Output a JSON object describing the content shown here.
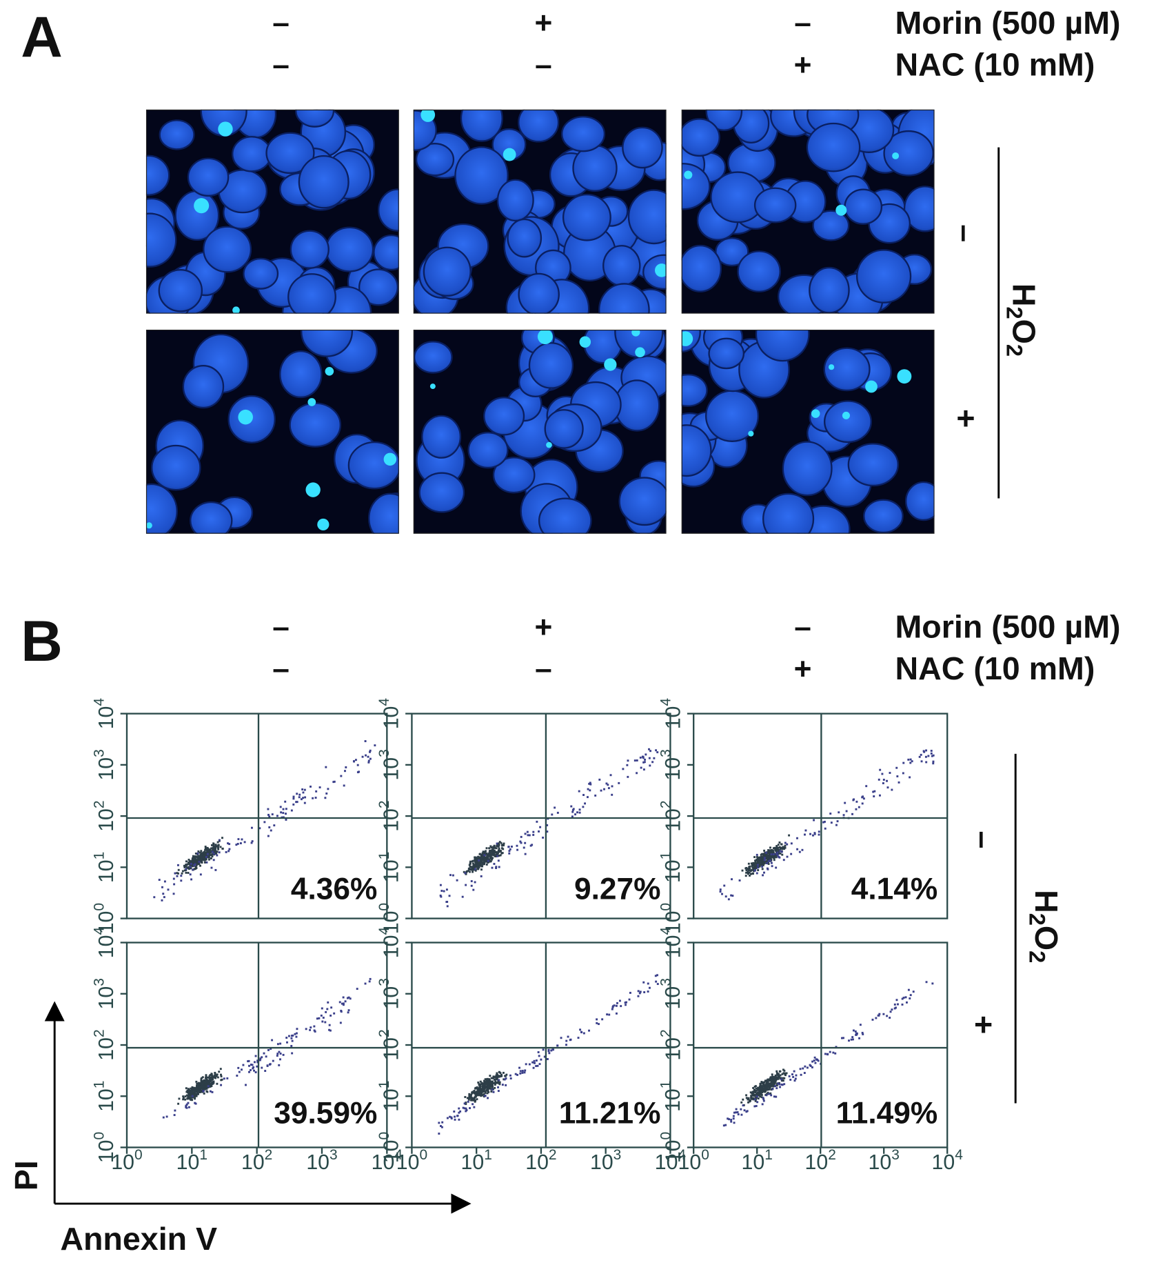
{
  "panel_a": {
    "label": "A",
    "treatments": [
      {
        "name": "Morin (500 µM)",
        "signs": [
          "–",
          "+",
          "–"
        ]
      },
      {
        "name": "NAC (10 mM)",
        "signs": [
          "–",
          "–",
          "+"
        ]
      }
    ],
    "h2o2": {
      "parts": [
        "H",
        "2",
        "O",
        "2"
      ],
      "signs": [
        "–",
        "+"
      ]
    }
  },
  "panel_b": {
    "label": "B",
    "treatments": [
      {
        "name": "Morin (500 µM)",
        "signs": [
          "–",
          "+",
          "–"
        ]
      },
      {
        "name": "NAC (10 mM)",
        "signs": [
          "–",
          "–",
          "+"
        ]
      }
    ],
    "h2o2": {
      "parts": [
        "H",
        "2",
        "O",
        "2"
      ],
      "signs": [
        "–",
        "+"
      ]
    },
    "percentages": [
      [
        "4.36%",
        "9.27%",
        "4.14%"
      ],
      [
        "39.59%",
        "11.21%",
        "11.49%"
      ]
    ],
    "ticks": [
      {
        "base": "10",
        "exponent": "0"
      },
      {
        "base": "10",
        "exponent": "1"
      },
      {
        "base": "10",
        "exponent": "2"
      },
      {
        "base": "10",
        "exponent": "3"
      },
      {
        "base": "10",
        "exponent": "4"
      }
    ],
    "y_axis_label": "PI",
    "x_axis_label": "Annexin V"
  }
}
